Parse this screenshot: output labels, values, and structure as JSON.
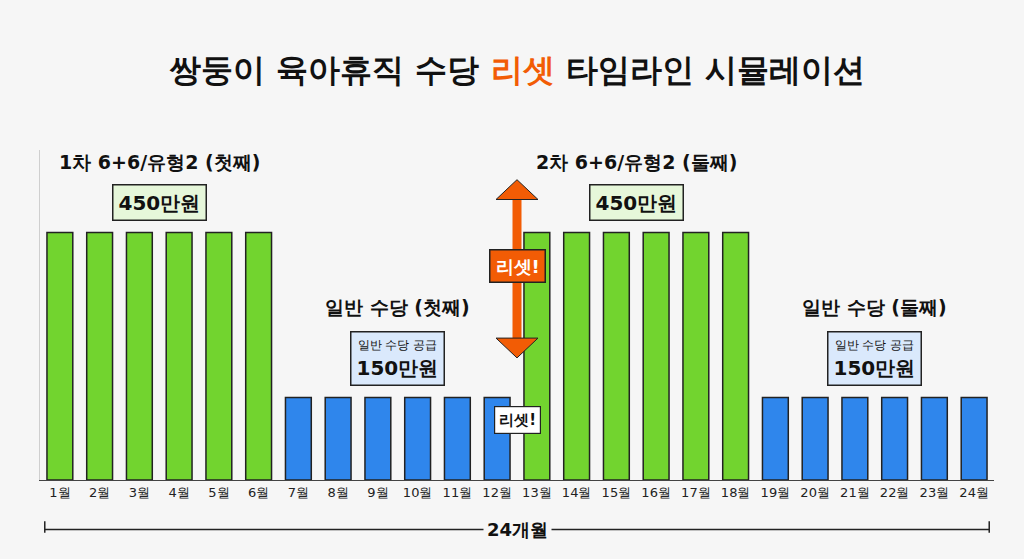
{
  "chart_data": {
    "type": "bar",
    "title": "쌍둥이 육아휴직 수당 리셋 타임라인 시뮬레이션",
    "title_highlight": "리셋",
    "categories": [
      "1월",
      "2월",
      "3월",
      "4월",
      "5월",
      "6월",
      "7월",
      "8월",
      "9월",
      "10월",
      "11월",
      "12월",
      "13월",
      "14월",
      "15월",
      "16월",
      "17월",
      "18월",
      "19월",
      "20월",
      "21월",
      "22월",
      "23월",
      "24월"
    ],
    "values": [
      450,
      450,
      450,
      450,
      450,
      450,
      150,
      150,
      150,
      150,
      150,
      150,
      450,
      450,
      450,
      450,
      450,
      450,
      150,
      150,
      150,
      150,
      150,
      150
    ],
    "colors": [
      "#72d42f",
      "#72d42f",
      "#72d42f",
      "#72d42f",
      "#72d42f",
      "#72d42f",
      "#2f86ec",
      "#2f86ec",
      "#2f86ec",
      "#2f86ec",
      "#2f86ec",
      "#2f86ec",
      "#72d42f",
      "#72d42f",
      "#72d42f",
      "#72d42f",
      "#72d42f",
      "#72d42f",
      "#2f86ec",
      "#2f86ec",
      "#2f86ec",
      "#2f86ec",
      "#2f86ec",
      "#2f86ec"
    ],
    "ylim": [
      0,
      600
    ],
    "tick_labels": "x",
    "grid": false,
    "groups": [
      {
        "title": "1차 6+6/유형2 (첫째)",
        "amount": "450만원",
        "first": "1월",
        "last": "6월"
      },
      {
        "title": "일반 수당 (첫째)",
        "note": "일반 수당 공급",
        "amount": "150만원",
        "first": "7월",
        "last": "12월"
      },
      {
        "title": "2차 6+6/유형2 (둘째)",
        "amount": "450만원",
        "first": "13월",
        "last": "18월"
      },
      {
        "title": "일반 수당 (둘째)",
        "note": "일반 수당 공급",
        "amount": "150만원",
        "first": "19월",
        "last": "24월"
      }
    ],
    "reset_labels": [
      "리셋!",
      "리셋!"
    ],
    "span_label": "24개월"
  }
}
